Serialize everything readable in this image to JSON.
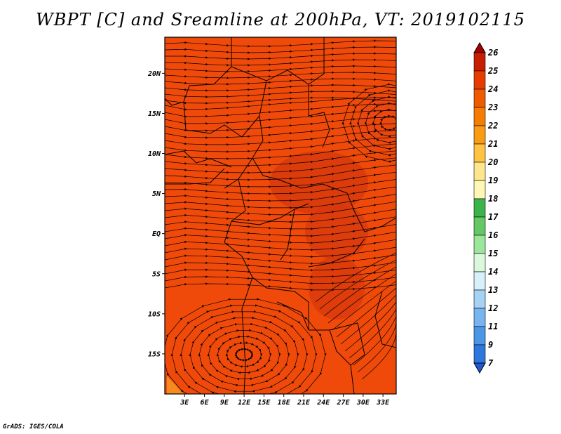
{
  "title": "WBPT [C] and Sreamline at 200hPa, VT: 2019102115",
  "credit": "GrADS: IGES/COLA",
  "map": {
    "lat_ticks": [
      "20N",
      "15N",
      "10N",
      "5N",
      "EQ",
      "5S",
      "10S",
      "15S"
    ],
    "lat_values": [
      20,
      15,
      10,
      5,
      0,
      -5,
      -10,
      -15
    ],
    "lon_ticks": [
      "3E",
      "6E",
      "9E",
      "12E",
      "15E",
      "18E",
      "21E",
      "24E",
      "27E",
      "30E",
      "33E"
    ],
    "lon_values": [
      3,
      6,
      9,
      12,
      15,
      18,
      21,
      24,
      27,
      30,
      33
    ],
    "lon_range": [
      0,
      35
    ],
    "lat_range": [
      -20,
      24.5
    ],
    "field_color": "#f04a0a",
    "field_dark_color": "#d63a0c",
    "streamline_color": "#000000",
    "border_color": "#000000"
  },
  "colorbar": {
    "labels": [
      "26",
      "25",
      "24",
      "23",
      "22",
      "21",
      "20",
      "19",
      "18",
      "17",
      "16",
      "15",
      "14",
      "13",
      "12",
      "11",
      "9",
      "7"
    ],
    "colors": [
      "#a50000",
      "#c81e00",
      "#e63c00",
      "#f05a00",
      "#f57d00",
      "#fa9b14",
      "#ffc341",
      "#fde68c",
      "#fff7b4",
      "#3cb44b",
      "#64c864",
      "#9be69b",
      "#dcf8dc",
      "#d7f0fa",
      "#a5d2f5",
      "#78b4f0",
      "#4b96e6",
      "#2d78dc",
      "#1e5ad2"
    ]
  }
}
